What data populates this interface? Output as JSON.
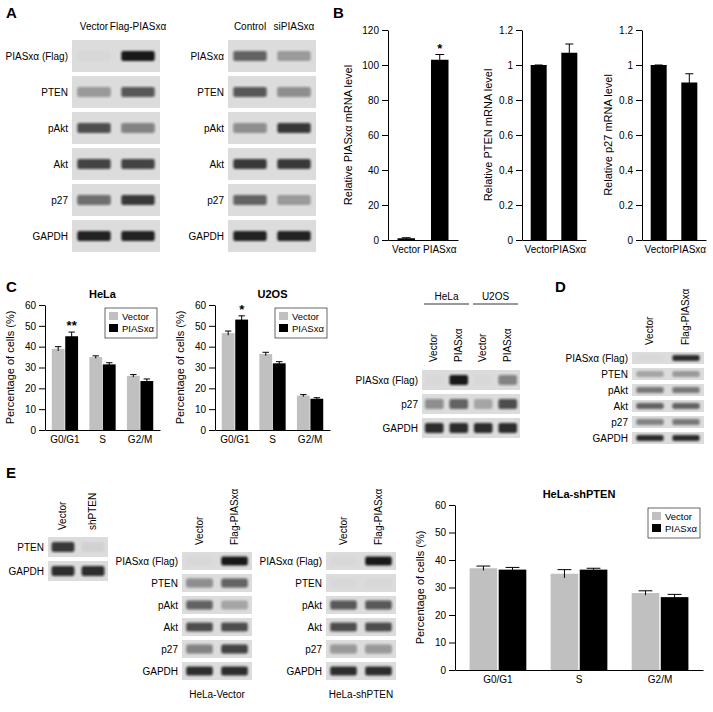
{
  "panel_labels": [
    "A",
    "B",
    "C",
    "D",
    "E"
  ],
  "blots": [
    {
      "columns": [
        "Vector",
        "Flag-PIASxα"
      ],
      "rows": [
        {
          "label": "PIASxα (Flag)",
          "intensity": [
            0.02,
            0.95
          ]
        },
        {
          "label": "PTEN",
          "intensity": [
            0.35,
            0.65
          ]
        },
        {
          "label": "pAkt",
          "intensity": [
            0.7,
            0.45
          ]
        },
        {
          "label": "Akt",
          "intensity": [
            0.75,
            0.75
          ]
        },
        {
          "label": "p27",
          "intensity": [
            0.55,
            0.8
          ]
        },
        {
          "label": "GAPDH",
          "intensity": [
            0.9,
            0.9
          ]
        }
      ]
    },
    {
      "columns": [
        "Control",
        "siPIASxα"
      ],
      "rows": [
        {
          "label": "PIASxα",
          "intensity": [
            0.6,
            0.3
          ]
        },
        {
          "label": "PTEN",
          "intensity": [
            0.65,
            0.4
          ]
        },
        {
          "label": "pAkt",
          "intensity": [
            0.4,
            0.8
          ]
        },
        {
          "label": "Akt",
          "intensity": [
            0.8,
            0.8
          ]
        },
        {
          "label": "p27",
          "intensity": [
            0.6,
            0.3
          ]
        },
        {
          "label": "GAPDH",
          "intensity": [
            0.9,
            0.9
          ]
        }
      ]
    },
    {
      "groups": [
        "HeLa",
        "U2OS"
      ],
      "columns": [
        "Vector",
        "PIASxα",
        "Vector",
        "PIASxα"
      ],
      "rows": [
        {
          "label": "PIASxα (Flag)",
          "intensity": [
            0.02,
            0.95,
            0.02,
            0.45
          ]
        },
        {
          "label": "p27",
          "intensity": [
            0.4,
            0.6,
            0.25,
            0.7
          ]
        },
        {
          "label": "GAPDH",
          "intensity": [
            0.85,
            0.85,
            0.85,
            0.85
          ]
        }
      ]
    },
    {
      "columns": [
        "Vector",
        "Flag-PIASxα"
      ],
      "rows": [
        {
          "label": "PIASxα (Flag)",
          "intensity": [
            0.02,
            0.85
          ]
        },
        {
          "label": "PTEN",
          "intensity": [
            0.25,
            0.3
          ]
        },
        {
          "label": "pAkt",
          "intensity": [
            0.5,
            0.5
          ]
        },
        {
          "label": "Akt",
          "intensity": [
            0.6,
            0.6
          ]
        },
        {
          "label": "p27",
          "intensity": [
            0.45,
            0.5
          ]
        },
        {
          "label": "GAPDH",
          "intensity": [
            0.85,
            0.85
          ]
        }
      ]
    },
    {
      "columns": [
        "Vector",
        "shPTEN"
      ],
      "rows": [
        {
          "label": "PTEN",
          "intensity": [
            0.8,
            0.05
          ]
        },
        {
          "label": "GAPDH",
          "intensity": [
            0.85,
            0.85
          ]
        }
      ]
    },
    {
      "caption": "HeLa-Vector",
      "columns": [
        "Vector",
        "Flag-PIASxα"
      ],
      "rows": [
        {
          "label": "PIASxα (Flag)",
          "intensity": [
            0.02,
            0.95
          ]
        },
        {
          "label": "PTEN",
          "intensity": [
            0.4,
            0.6
          ]
        },
        {
          "label": "pAkt",
          "intensity": [
            0.6,
            0.25
          ]
        },
        {
          "label": "Akt",
          "intensity": [
            0.7,
            0.7
          ]
        },
        {
          "label": "p27",
          "intensity": [
            0.45,
            0.75
          ]
        },
        {
          "label": "GAPDH",
          "intensity": [
            0.85,
            0.85
          ]
        }
      ]
    },
    {
      "caption": "HeLa-shPTEN",
      "columns": [
        "Vector",
        "Flag-PIASxα"
      ],
      "rows": [
        {
          "label": "PIASxα (Flag)",
          "intensity": [
            0.02,
            0.95
          ]
        },
        {
          "label": "PTEN",
          "intensity": [
            0.02,
            0.02
          ]
        },
        {
          "label": "pAkt",
          "intensity": [
            0.65,
            0.65
          ]
        },
        {
          "label": "Akt",
          "intensity": [
            0.7,
            0.7
          ]
        },
        {
          "label": "p27",
          "intensity": [
            0.35,
            0.35
          ]
        },
        {
          "label": "GAPDH",
          "intensity": [
            0.85,
            0.85
          ]
        }
      ]
    }
  ],
  "chart_data": [
    {
      "type": "bar",
      "y_label": "Relative PIASxα mRNA level",
      "categories": [
        "Vector",
        "PIASxα"
      ],
      "values": [
        1,
        103
      ],
      "error": [
        0.3,
        3
      ],
      "color": "#000000",
      "ylim": [
        0,
        120
      ],
      "yticks": [
        0,
        20,
        40,
        60,
        80,
        100,
        120
      ],
      "annotations": [
        {
          "text": "*",
          "category": 1
        }
      ]
    },
    {
      "type": "bar",
      "y_label": "Relative PTEN mRNA level",
      "categories": [
        "Vector",
        "PIASxα"
      ],
      "values": [
        1,
        1.07
      ],
      "error": [
        0,
        0.05
      ],
      "color": "#000000",
      "ylim": [
        0,
        1.2
      ],
      "yticks": [
        0,
        0.2,
        0.4,
        0.6,
        0.8,
        1,
        1.2
      ]
    },
    {
      "type": "bar",
      "y_label": "Relative p27 mRNA level",
      "categories": [
        "Vector",
        "PIASxα"
      ],
      "values": [
        1,
        0.9
      ],
      "error": [
        0,
        0.05
      ],
      "color": "#000000",
      "ylim": [
        0,
        1.2
      ],
      "yticks": [
        0,
        0.2,
        0.4,
        0.6,
        0.8,
        1,
        1.2
      ]
    },
    {
      "type": "bar",
      "title": "HeLa",
      "y_label": "Percentage of cells (%)",
      "categories": [
        "G0/G1",
        "S",
        "G2/M"
      ],
      "series": [
        {
          "name": "Vector",
          "color": "#c0c0c0",
          "values": [
            39,
            35,
            26
          ],
          "error": [
            1,
            0.6,
            0.6
          ]
        },
        {
          "name": "PIASxα",
          "color": "#000000",
          "values": [
            45,
            31.5,
            23.5
          ],
          "error": [
            2,
            0.8,
            1
          ]
        }
      ],
      "ylim": [
        0,
        60
      ],
      "yticks": [
        0,
        10,
        20,
        30,
        40,
        50,
        60
      ],
      "legend": "top-right",
      "annotations": [
        {
          "text": "**",
          "category": 0,
          "series": 1
        }
      ]
    },
    {
      "type": "bar",
      "title": "U2OS",
      "y_label": "Percentage of cells (%)",
      "categories": [
        "G0/G1",
        "S",
        "G2/M"
      ],
      "series": [
        {
          "name": "Vector",
          "color": "#c0c0c0",
          "values": [
            46.5,
            36.5,
            16.5
          ],
          "error": [
            1,
            0.8,
            0.5
          ]
        },
        {
          "name": "PIASxα",
          "color": "#000000",
          "values": [
            53,
            32,
            15
          ],
          "error": [
            1.8,
            0.8,
            0.5
          ]
        }
      ],
      "ylim": [
        0,
        60
      ],
      "yticks": [
        0,
        10,
        20,
        30,
        40,
        50,
        60
      ],
      "legend": "top-right",
      "annotations": [
        {
          "text": "*",
          "category": 0,
          "series": 1
        }
      ]
    },
    {
      "type": "bar",
      "title": "HeLa-shPTEN",
      "y_label": "Percentage of cells (%)",
      "categories": [
        "G0/G1",
        "S",
        "G2/M"
      ],
      "series": [
        {
          "name": "Vector",
          "color": "#c0c0c0",
          "values": [
            37,
            35,
            28
          ],
          "error": [
            0.8,
            1.5,
            0.8
          ]
        },
        {
          "name": "PIASxα",
          "color": "#000000",
          "values": [
            36.5,
            36.5,
            26.5
          ],
          "error": [
            0.8,
            0.5,
            1
          ]
        }
      ],
      "ylim": [
        0,
        60
      ],
      "yticks": [
        0,
        10,
        20,
        30,
        40,
        50,
        60
      ],
      "legend": "top-right"
    }
  ]
}
